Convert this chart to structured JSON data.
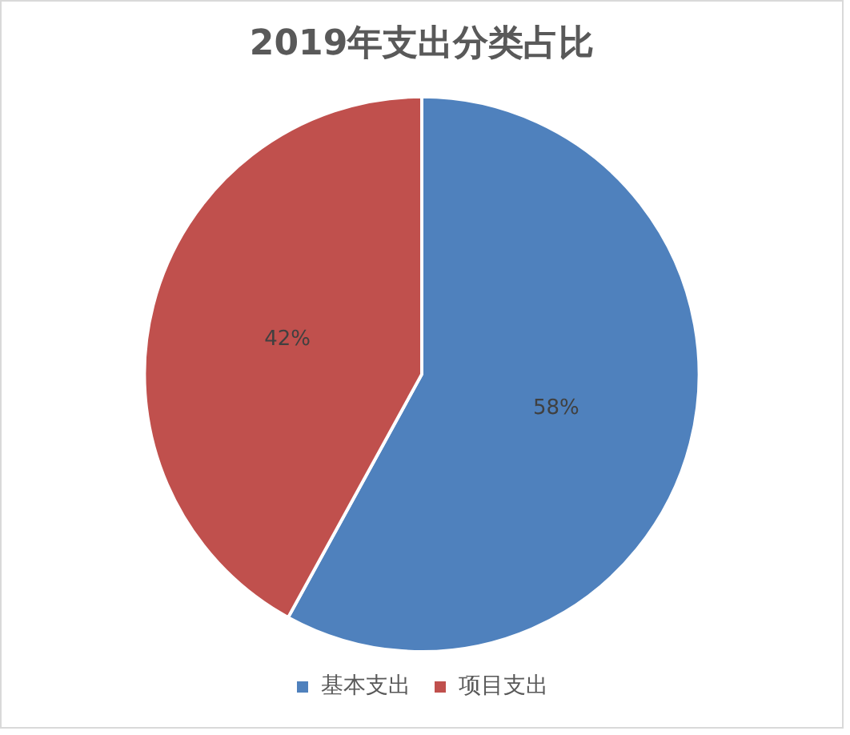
{
  "chart_data": {
    "type": "pie",
    "title": "2019年支出分类占比",
    "categories": [
      "基本支出",
      "项目支出"
    ],
    "values": [
      58,
      42
    ],
    "colors": [
      "#4f81bd",
      "#c0504d"
    ],
    "value_labels": [
      "58%",
      "42%"
    ],
    "legend": "bottom"
  }
}
